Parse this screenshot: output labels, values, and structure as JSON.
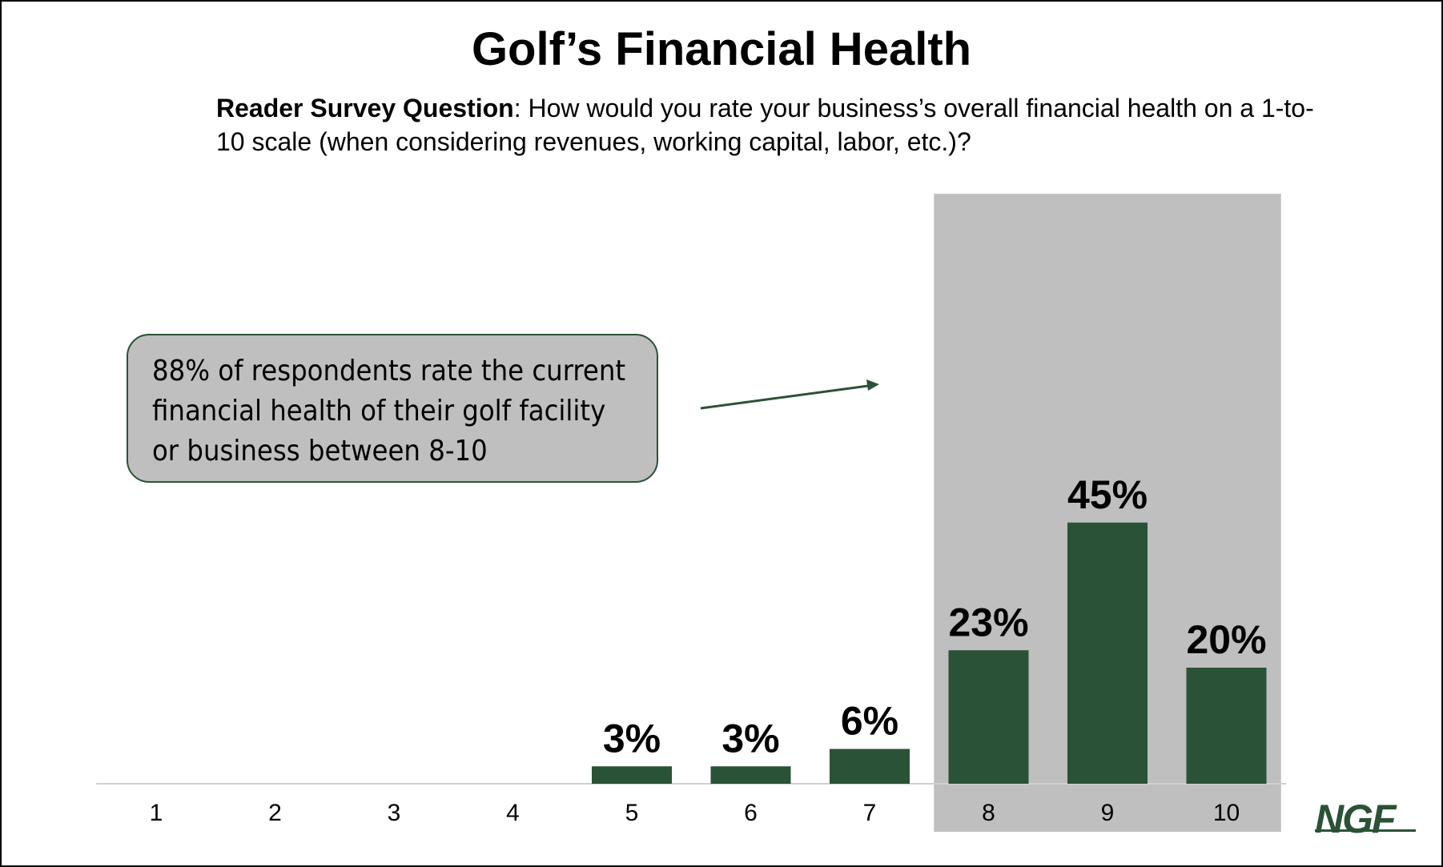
{
  "title": "Golf’s Financial Health",
  "subtitle": {
    "bold": "Reader Survey Question",
    "text": ": How would you rate your business’s overall financial health on a 1-to-10 scale (when considering revenues, working capital, labor, etc.)?"
  },
  "callout": "88% of respondents rate the current financial health of their golf facility or business between 8-10",
  "logo": "NGF",
  "colors": {
    "bar": "#2a5236",
    "highlight": "#bfbfbf",
    "axis": "#d0d0d0"
  },
  "chart_data": {
    "type": "bar",
    "categories": [
      "1",
      "2",
      "3",
      "4",
      "5",
      "6",
      "7",
      "8",
      "9",
      "10"
    ],
    "values": [
      0,
      0,
      0,
      0,
      3,
      3,
      6,
      23,
      45,
      20
    ],
    "data_labels": [
      "",
      "",
      "",
      "",
      "3%",
      "3%",
      "6%",
      "23%",
      "45%",
      "20%"
    ],
    "highlighted_categories": [
      "8",
      "9",
      "10"
    ],
    "unit": "%",
    "grid": false,
    "legend": "none"
  }
}
